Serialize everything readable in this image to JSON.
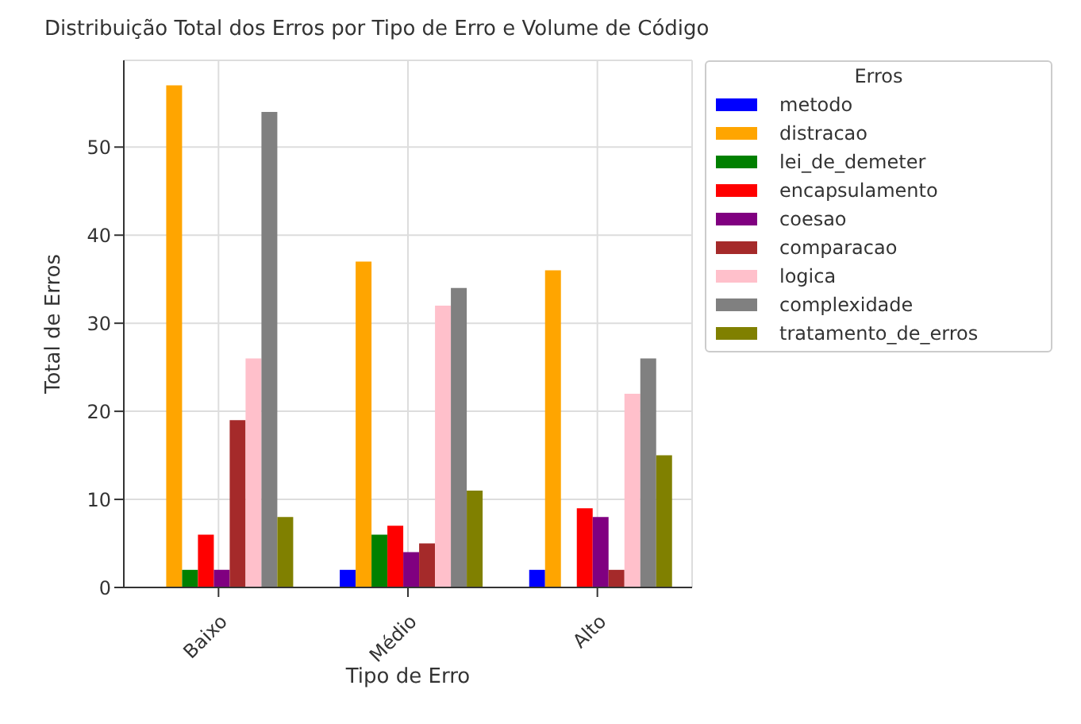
{
  "chart_data": {
    "type": "bar",
    "title": "Distribuição Total dos Erros por Tipo de Erro e Volume de Código",
    "xlabel": "Tipo de Erro",
    "ylabel": "Total de Erros",
    "legend_title": "Erros",
    "categories": [
      "Baixo",
      "Médio",
      "Alto"
    ],
    "series": [
      {
        "name": "metodo",
        "color": "#0000ff",
        "values": [
          0,
          2,
          2
        ]
      },
      {
        "name": "distracao",
        "color": "#ffa500",
        "values": [
          57,
          37,
          36
        ]
      },
      {
        "name": "lei_de_demeter",
        "color": "#008000",
        "values": [
          2,
          6,
          0
        ]
      },
      {
        "name": "encapsulamento",
        "color": "#ff0000",
        "values": [
          6,
          7,
          9
        ]
      },
      {
        "name": "coesao",
        "color": "#800080",
        "values": [
          2,
          4,
          8
        ]
      },
      {
        "name": "comparacao",
        "color": "#a52a2a",
        "values": [
          19,
          5,
          2
        ]
      },
      {
        "name": "logica",
        "color": "#ffc0cb",
        "values": [
          26,
          32,
          22
        ]
      },
      {
        "name": "complexidade",
        "color": "#808080",
        "values": [
          54,
          34,
          26
        ]
      },
      {
        "name": "tratamento_de_erros",
        "color": "#808000",
        "values": [
          8,
          11,
          15
        ]
      }
    ],
    "ylim": [
      0,
      59.85
    ],
    "yticks": [
      0,
      10,
      20,
      30,
      40,
      50
    ],
    "grid": true,
    "legend": "right"
  }
}
